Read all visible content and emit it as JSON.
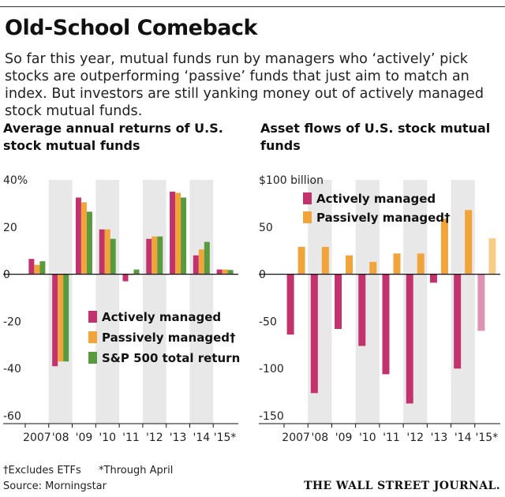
{
  "headline": "Old-School Comeback",
  "dek": "So far this year, mutual funds run by managers who ‘actively’ pick stocks are outperforming ‘passive’ funds that just aim to match an index. But investors are still yanking money out of actively managed stock mutual funds.",
  "footnote_etf": "†Excludes ETFs",
  "footnote_april": "*Through April",
  "source": "Source: Morningstar",
  "brand": "THE WALL STREET JOURNAL.",
  "colors": {
    "active": "#c2336e",
    "passive": "#f0a43a",
    "sp500": "#5a9a3e",
    "band": "#e8e8e8",
    "active_estimate": "#df93b4",
    "passive_estimate": "#f7cc84"
  },
  "chart_data": [
    {
      "type": "bar",
      "title": "Average annual returns of U.S. stock mutual funds",
      "categories": [
        "2007",
        "'08",
        "'09",
        "'10",
        "'11",
        "'12",
        "'13",
        "'14",
        "'15*"
      ],
      "y_ticks": [
        "40%",
        "20",
        "0",
        "-20",
        "-40",
        "-60"
      ],
      "y_tick_values": [
        40,
        20,
        0,
        -20,
        -40,
        -60
      ],
      "ylim": [
        -62,
        40
      ],
      "shaded_categories": [
        "'08",
        "'10",
        "'12",
        "'14"
      ],
      "grid": false,
      "legend_position": "center",
      "series": [
        {
          "name": "Actively managed",
          "values": [
            6.5,
            -39,
            32.5,
            19,
            -3,
            15,
            35,
            8,
            2
          ]
        },
        {
          "name": "Passively managed†",
          "values": [
            4,
            -37,
            30.5,
            19,
            -0.3,
            16,
            34.5,
            10.5,
            2
          ]
        },
        {
          "name": "S&P 500 total return",
          "values": [
            5.5,
            -37,
            26.5,
            15,
            2,
            16,
            32.5,
            13.7,
            1.8
          ]
        }
      ]
    },
    {
      "type": "bar",
      "title": "Asset flows of U.S. stock mutual funds",
      "categories": [
        "2007",
        "'08",
        "'09",
        "'10",
        "'11",
        "'12",
        "'13",
        "'14",
        "'15*"
      ],
      "y_ticks": [
        "$100 billion",
        "50",
        "0",
        "-50",
        "-100",
        "-150"
      ],
      "y_tick_values": [
        100,
        50,
        0,
        -50,
        -100,
        -150
      ],
      "ylim": [
        -155,
        100
      ],
      "shaded_categories": [
        "'08",
        "'10",
        "'12",
        "'14"
      ],
      "grid": false,
      "legend_position": "top-left",
      "series": [
        {
          "name": "Actively managed",
          "values": [
            -64,
            -126,
            -58,
            -76,
            -106,
            -137,
            -9,
            -100,
            -60
          ]
        },
        {
          "name": "Passively managed†",
          "values": [
            29,
            29,
            20,
            13,
            22,
            22,
            59,
            68,
            38
          ]
        }
      ]
    }
  ]
}
